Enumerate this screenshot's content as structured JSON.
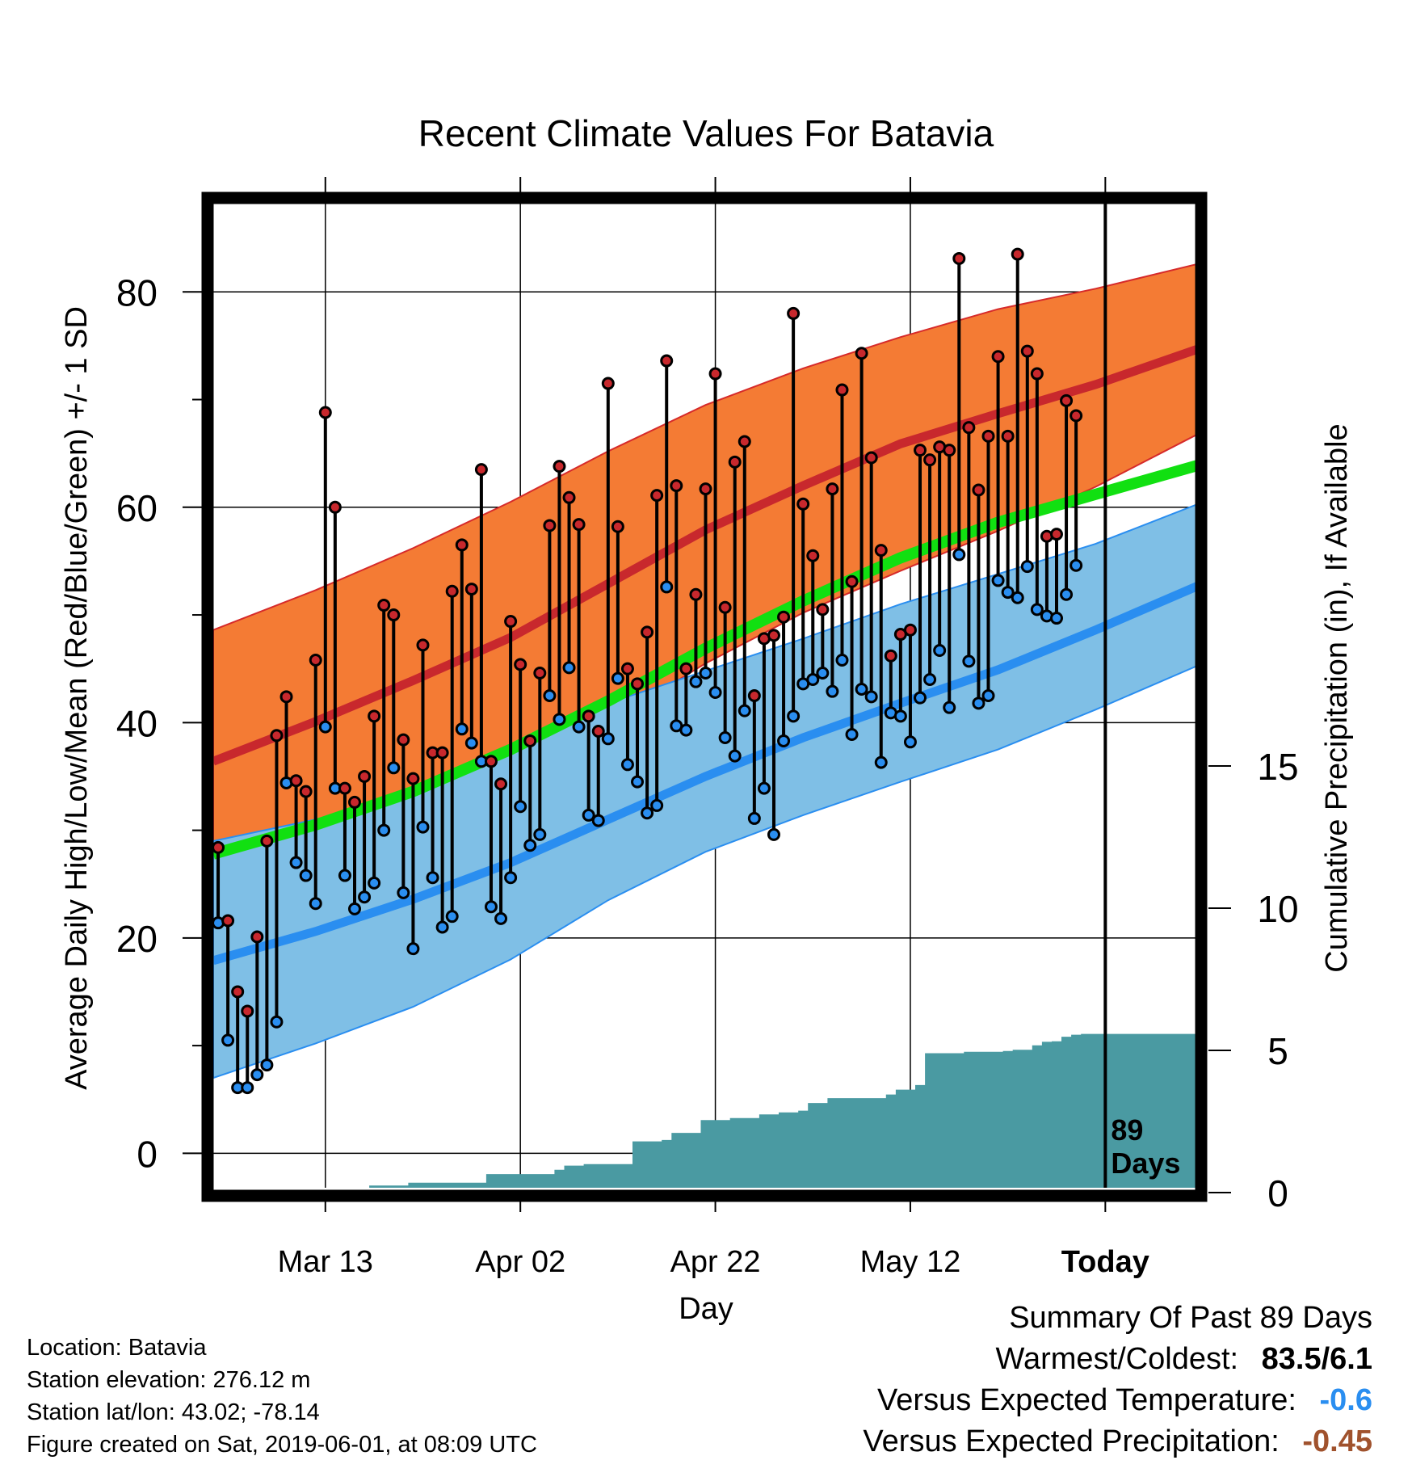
{
  "colors": {
    "high_band": "#f47b34",
    "high_mean": "#c8282d",
    "mean_line": "#11e011",
    "low_band": "#7fbfe6",
    "low_mean": "#2a8ef0",
    "precip": "#4a9aa2",
    "record_high_dot": "#c8282d",
    "record_low_dot": "#2a8ef0",
    "temp_anomaly": "#2a8ef0",
    "precip_anomaly": "#a0522d"
  },
  "chart_data": {
    "type": "line",
    "title": "Recent Climate Values For Batavia",
    "xlabel": "Day",
    "ylabel_left": "Average Daily High/Low/Mean (Red/Blue/Green) +/- 1 SD",
    "ylabel_right": "Cumulative Precipitation (in), If Available",
    "x_ticks": [
      {
        "day": 11,
        "label": "Mar 13"
      },
      {
        "day": 31,
        "label": "Apr 02"
      },
      {
        "day": 51,
        "label": "Apr 22"
      },
      {
        "day": 71,
        "label": "May 12"
      },
      {
        "day": 91,
        "label": "Today"
      }
    ],
    "xlim": [
      -0.5,
      100.5
    ],
    "ylim_left": [
      -3.2,
      88.5
    ],
    "y_ticks_left": [
      0,
      20,
      40,
      60,
      80
    ],
    "ylim_right": [
      0,
      15
    ],
    "y_ticks_right": [
      0,
      5,
      10,
      15
    ],
    "today_marker": {
      "day": 91,
      "label_top": "89",
      "label_bottom": "Days"
    },
    "normals": {
      "days": [
        -0.5,
        10,
        20,
        30,
        40,
        50,
        60,
        70,
        80,
        90,
        100.5
      ],
      "high_upper": [
        48.6,
        52.3,
        56.2,
        60.5,
        65.2,
        69.5,
        72.9,
        75.8,
        78.4,
        80.3,
        82.6
      ],
      "high_mean": [
        36.4,
        40.1,
        43.9,
        47.9,
        52.9,
        57.9,
        62.0,
        65.9,
        68.7,
        71.4,
        74.7
      ],
      "high_lower": [
        25.6,
        28.5,
        31.4,
        35.0,
        40.0,
        45.5,
        50.2,
        54.1,
        57.8,
        61.9,
        66.8
      ],
      "mean": [
        27.8,
        30.5,
        33.6,
        37.5,
        42.0,
        46.9,
        51.3,
        55.3,
        58.6,
        61.2,
        63.9
      ],
      "low_upper": [
        29.0,
        31.0,
        33.5,
        37.6,
        41.8,
        44.8,
        47.8,
        51.0,
        53.8,
        56.6,
        60.3
      ],
      "low_mean": [
        17.9,
        20.6,
        23.6,
        27.0,
        31.0,
        35.0,
        38.6,
        41.8,
        44.9,
        48.6,
        52.7
      ],
      "low_lower": [
        7.0,
        10.2,
        13.6,
        18.0,
        23.5,
        28.0,
        31.4,
        34.5,
        37.5,
        41.2,
        45.3
      ]
    },
    "series": [
      {
        "name": "Daily High",
        "values": [
          28.4,
          21.6,
          15.0,
          13.2,
          20.1,
          29.0,
          38.8,
          42.4,
          34.6,
          33.6,
          45.8,
          68.8,
          60.0,
          33.9,
          32.6,
          35.0,
          40.6,
          50.9,
          50.0,
          38.4,
          34.8,
          47.2,
          37.2,
          37.2,
          52.2,
          56.5,
          52.4,
          63.5,
          36.4,
          34.3,
          49.4,
          45.4,
          38.3,
          44.6,
          58.3,
          63.8,
          60.9,
          58.4,
          40.6,
          39.2,
          71.5,
          58.2,
          45.0,
          43.6,
          48.4,
          61.1,
          73.6,
          62.0,
          45.0,
          51.9,
          61.7,
          72.4,
          50.7,
          64.2,
          66.1,
          42.5,
          47.8,
          48.1,
          49.8,
          78.0,
          60.3,
          55.5,
          50.5,
          61.7,
          70.9,
          53.1,
          74.3,
          64.6,
          56.0,
          46.2,
          48.2,
          48.6,
          65.3,
          64.4,
          65.6,
          65.3,
          83.1,
          67.4,
          61.6,
          66.6,
          74.0,
          66.6,
          83.5,
          74.5,
          72.4,
          57.3,
          57.5,
          69.9,
          68.5
        ]
      },
      {
        "name": "Daily Low",
        "values": [
          21.4,
          10.5,
          6.1,
          6.1,
          7.3,
          8.2,
          12.2,
          34.4,
          27.0,
          25.8,
          23.2,
          39.6,
          33.9,
          25.8,
          22.7,
          23.8,
          25.1,
          30.0,
          35.8,
          24.2,
          19.0,
          30.3,
          25.6,
          21.0,
          22.0,
          39.4,
          38.1,
          36.4,
          22.9,
          21.8,
          25.6,
          32.2,
          28.6,
          29.6,
          42.5,
          40.3,
          45.1,
          39.6,
          31.4,
          30.9,
          38.5,
          44.1,
          36.1,
          34.5,
          31.6,
          32.3,
          52.6,
          39.7,
          39.3,
          43.8,
          44.6,
          42.8,
          38.6,
          36.9,
          41.1,
          31.1,
          33.9,
          29.6,
          38.3,
          40.6,
          43.6,
          44.0,
          44.6,
          42.9,
          45.8,
          38.9,
          43.1,
          42.4,
          36.3,
          40.9,
          40.6,
          38.2,
          42.3,
          44.0,
          46.7,
          41.4,
          55.6,
          45.7,
          41.8,
          42.5,
          53.2,
          52.1,
          51.6,
          54.5,
          50.5,
          49.9,
          49.7,
          51.9,
          54.6
        ]
      },
      {
        "name": "Cumulative Precipitation",
        "days": [
          -0.5,
          6.5,
          7.5,
          15.5,
          19.5,
          26.5,
          27.5,
          30.5,
          34.5,
          35.5,
          37.5,
          41.5,
          42.5,
          45.5,
          46.5,
          49.5,
          52.5,
          53.5,
          55.5,
          57.5,
          59.5,
          60.5,
          62.5,
          65.5,
          66.5,
          68.5,
          69.5,
          70.5,
          71.5,
          72.5,
          76.5,
          80.5,
          81.5,
          83.5,
          84.5,
          85.5,
          86.5,
          87.5,
          88.5,
          100.5
        ],
        "values": [
          0.0,
          0.0,
          0.15,
          0.25,
          0.35,
          0.35,
          0.65,
          0.65,
          0.8,
          0.95,
          1.0,
          1.0,
          1.8,
          1.85,
          2.1,
          2.55,
          2.62,
          2.62,
          2.75,
          2.82,
          2.88,
          3.15,
          3.32,
          3.32,
          3.32,
          3.45,
          3.62,
          3.62,
          3.78,
          4.9,
          4.95,
          4.98,
          5.02,
          5.18,
          5.3,
          5.32,
          5.48,
          5.55,
          5.58,
          5.58
        ]
      }
    ]
  },
  "footer": {
    "location": "Location: Batavia",
    "elevation": "Station elevation: 276.12 m",
    "latlon": "Station lat/lon: 43.02; -78.14",
    "created": "Figure created on Sat, 2019-06-01, at 08:09 UTC"
  },
  "summary": {
    "title": "Summary Of Past 89 Days",
    "warmest_label": "Warmest/Coldest:",
    "warmest_value": "83.5/6.1",
    "temp_label": "Versus Expected Temperature:",
    "temp_value": "-0.6",
    "precip_label": "Versus Expected Precipitation:",
    "precip_value": "-0.45"
  }
}
